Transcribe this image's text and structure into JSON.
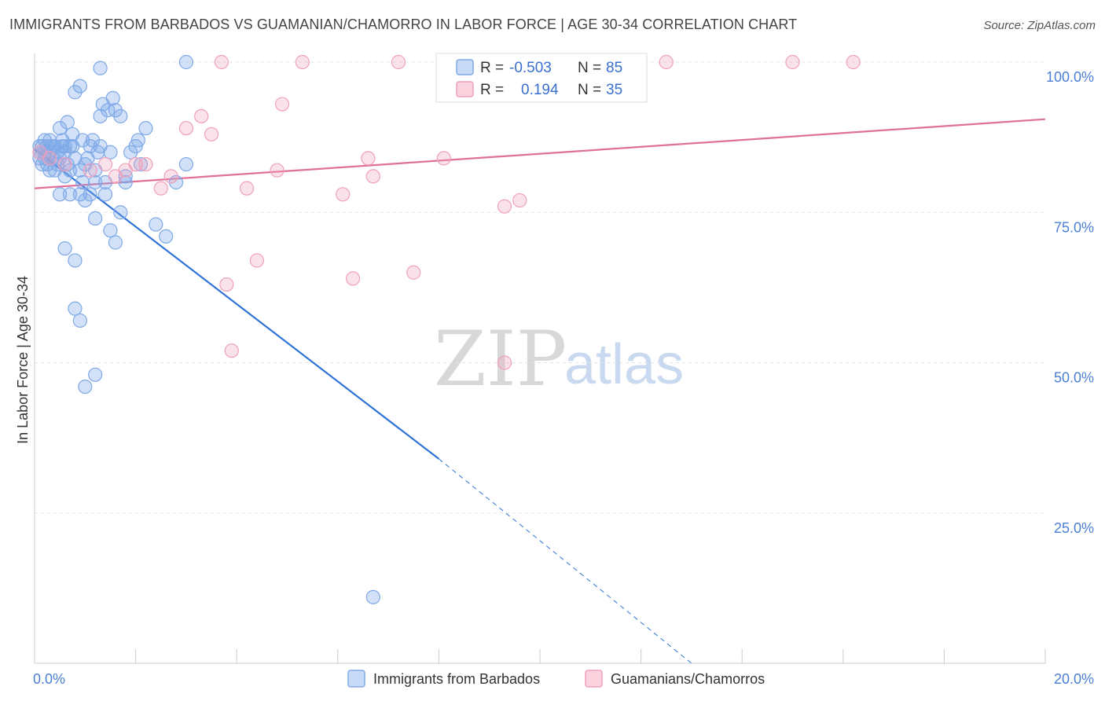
{
  "title": "IMMIGRANTS FROM BARBADOS VS GUAMANIAN/CHAMORRO IN LABOR FORCE | AGE 30-34 CORRELATION CHART",
  "source": "Source: ZipAtlas.com",
  "watermark": {
    "zip": "ZIP",
    "atlas": "atlas"
  },
  "legend_top": [
    {
      "r_label": "R =",
      "r_value": "-0.503",
      "n_label": "N =",
      "n_value": "85",
      "color": "#7fa9e8"
    },
    {
      "r_label": "R =",
      "r_value": "0.194",
      "n_label": "N =",
      "n_value": "35",
      "color": "#f0a0bb"
    }
  ],
  "legend_bottom": [
    {
      "label": "Immigrants from Barbados",
      "color": "#7fa9e8"
    },
    {
      "label": "Guamanians/Chamorros",
      "color": "#f0a0bb"
    }
  ],
  "chart_data": {
    "type": "scatter",
    "title": "IMMIGRANTS FROM BARBADOS VS GUAMANIAN/CHAMORRO IN LABOR FORCE | AGE 30-34 CORRELATION CHART",
    "xlabel": "",
    "ylabel": "In Labor Force | Age 30-34",
    "xlim": [
      0,
      20
    ],
    "ylim": [
      0,
      100
    ],
    "x_tick_labels": [
      "0.0%",
      "20.0%"
    ],
    "y_ticks": [
      25,
      50,
      75,
      100
    ],
    "y_tick_labels": [
      "25.0%",
      "50.0%",
      "75.0%",
      "100.0%"
    ],
    "grid": true,
    "series": [
      {
        "name": "Immigrants from Barbados",
        "color": "#7fa9e8",
        "line_color": "#2f73d8",
        "trend": {
          "x0": 0,
          "y0": 85.5,
          "x1": 8.0,
          "y1": 34,
          "dash_to_x": 13.0,
          "dash_to_y": 0
        },
        "points": [
          [
            0.1,
            86
          ],
          [
            0.1,
            84
          ],
          [
            0.1,
            85
          ],
          [
            0.15,
            83
          ],
          [
            0.15,
            86
          ],
          [
            0.2,
            85
          ],
          [
            0.2,
            84
          ],
          [
            0.25,
            86
          ],
          [
            0.25,
            83
          ],
          [
            0.3,
            87
          ],
          [
            0.3,
            85
          ],
          [
            0.35,
            86
          ],
          [
            0.35,
            84
          ],
          [
            0.4,
            86
          ],
          [
            0.4,
            82
          ],
          [
            0.45,
            85
          ],
          [
            0.45,
            83
          ],
          [
            0.5,
            89
          ],
          [
            0.5,
            84
          ],
          [
            0.55,
            87
          ],
          [
            0.55,
            86
          ],
          [
            0.6,
            86
          ],
          [
            0.6,
            81
          ],
          [
            0.65,
            90
          ],
          [
            0.65,
            83
          ],
          [
            0.7,
            82
          ],
          [
            0.75,
            88
          ],
          [
            0.75,
            86
          ],
          [
            0.8,
            95
          ],
          [
            0.8,
            84
          ],
          [
            0.9,
            96
          ],
          [
            0.9,
            82
          ],
          [
            0.95,
            87
          ],
          [
            0.95,
            80
          ],
          [
            1.0,
            77
          ],
          [
            1.05,
            84
          ],
          [
            1.1,
            86
          ],
          [
            1.15,
            87
          ],
          [
            1.2,
            82
          ],
          [
            1.2,
            80
          ],
          [
            1.25,
            85
          ],
          [
            1.3,
            99
          ],
          [
            1.3,
            86
          ],
          [
            1.35,
            93
          ],
          [
            1.4,
            80
          ],
          [
            1.45,
            92
          ],
          [
            1.5,
            85
          ],
          [
            1.55,
            94
          ],
          [
            1.6,
            92
          ],
          [
            1.7,
            91
          ],
          [
            1.8,
            80
          ],
          [
            1.9,
            85
          ],
          [
            2.0,
            86
          ],
          [
            2.05,
            87
          ],
          [
            2.1,
            83
          ],
          [
            2.2,
            89
          ],
          [
            1.2,
            48
          ],
          [
            0.8,
            59
          ],
          [
            0.9,
            57
          ],
          [
            0.6,
            69
          ],
          [
            0.8,
            67
          ],
          [
            1.0,
            46
          ],
          [
            0.5,
            78
          ],
          [
            0.7,
            78
          ],
          [
            0.9,
            78
          ],
          [
            1.1,
            78
          ],
          [
            1.2,
            74
          ],
          [
            1.5,
            72
          ],
          [
            1.6,
            70
          ],
          [
            1.8,
            81
          ],
          [
            2.4,
            73
          ],
          [
            2.6,
            71
          ],
          [
            2.8,
            80
          ],
          [
            3.0,
            83
          ],
          [
            3.0,
            100
          ],
          [
            1.7,
            75
          ],
          [
            1.4,
            78
          ],
          [
            0.3,
            82
          ],
          [
            0.4,
            86
          ],
          [
            0.2,
            87
          ],
          [
            0.6,
            85
          ],
          [
            0.7,
            86
          ],
          [
            1.3,
            91
          ],
          [
            1.0,
            83
          ],
          [
            6.7,
            11
          ]
        ]
      },
      {
        "name": "Guamanians/Chamorros",
        "color": "#f0a0bb",
        "line_color": "#e07098",
        "trend": {
          "x0": 0,
          "y0": 79,
          "x1": 20,
          "y1": 90.5
        },
        "points": [
          [
            0.1,
            85
          ],
          [
            0.3,
            84
          ],
          [
            0.6,
            83
          ],
          [
            1.1,
            82
          ],
          [
            1.4,
            83
          ],
          [
            1.6,
            81
          ],
          [
            1.8,
            82
          ],
          [
            2.0,
            83
          ],
          [
            2.2,
            83
          ],
          [
            2.5,
            79
          ],
          [
            2.7,
            81
          ],
          [
            3.0,
            89
          ],
          [
            3.3,
            91
          ],
          [
            3.5,
            88
          ],
          [
            3.8,
            63
          ],
          [
            3.9,
            52
          ],
          [
            4.2,
            79
          ],
          [
            4.4,
            67
          ],
          [
            4.8,
            82
          ],
          [
            4.9,
            93
          ],
          [
            5.3,
            100
          ],
          [
            6.1,
            78
          ],
          [
            6.3,
            64
          ],
          [
            6.6,
            84
          ],
          [
            6.7,
            81
          ],
          [
            7.2,
            100
          ],
          [
            7.5,
            65
          ],
          [
            8.1,
            84
          ],
          [
            9.3,
            76
          ],
          [
            9.6,
            77
          ],
          [
            9.3,
            50
          ],
          [
            12.5,
            100
          ],
          [
            15.0,
            100
          ],
          [
            16.2,
            100
          ],
          [
            3.7,
            100
          ]
        ]
      }
    ]
  }
}
